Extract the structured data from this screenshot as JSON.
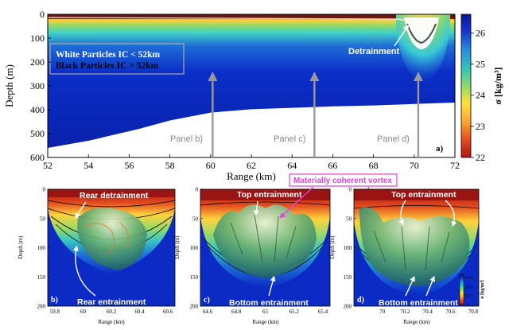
{
  "panel_a": {
    "label": "a)",
    "xlabel": "Range (km)",
    "ylabel": "Depth (m)",
    "legend_white": "White Particles IC < 52km",
    "legend_black": "Black Particles IC > 52km",
    "detrainment": "Detrainment",
    "panel_b_label": "Panel b)",
    "panel_c_label": "Panel c)",
    "panel_d_label": "Panel d)",
    "colorbar_label": "σ [kg/m³]"
  },
  "panel_b": {
    "label": "b)",
    "xlabel": "Range (km)",
    "ylabel": "Depth (m)",
    "top_annotation": "Rear detrainment",
    "bottom_annotation": "Rear entrainment"
  },
  "panel_c": {
    "label": "c)",
    "xlabel": "Range (km)",
    "ylabel": "Depth (m)",
    "top_annotation": "Top entrainment",
    "bottom_annotation": "Bottom entrainment",
    "vortex_annotation": "Materially coherent vortex"
  },
  "panel_d": {
    "label": "d)",
    "xlabel": "Range (km)",
    "ylabel": "Depth (m)",
    "top_annotation": "Top entrainment",
    "bottom_annotation": "Bottom entrainment",
    "colorbar_label": "σ [kg/m³]"
  },
  "chart_data": [
    {
      "id": "a",
      "type": "heatmap",
      "xlim": [
        52,
        72
      ],
      "ylim": [
        600,
        0
      ],
      "x_ticks": [
        52,
        54,
        56,
        58,
        60,
        62,
        64,
        66,
        68,
        70,
        72
      ],
      "y_ticks": [
        0,
        100,
        200,
        300,
        400,
        500,
        600
      ],
      "colorbar_ticks": [
        22,
        23,
        24,
        25,
        26
      ],
      "colorbar_range": [
        22,
        26.6
      ],
      "panel_marker_ranges": [
        60.1,
        65.1,
        70.2
      ],
      "vortex_center_range": 70.2,
      "bottom_profile": [
        [
          52,
          560
        ],
        [
          54,
          530
        ],
        [
          56,
          490
        ],
        [
          56.5,
          480
        ],
        [
          58,
          445
        ],
        [
          60,
          412
        ],
        [
          62,
          398
        ],
        [
          64,
          392
        ],
        [
          66,
          386
        ],
        [
          68,
          382
        ],
        [
          70,
          376
        ],
        [
          72,
          370
        ]
      ]
    },
    {
      "id": "b",
      "type": "heatmap",
      "xlim": [
        59.75,
        60.65
      ],
      "ylim": [
        200,
        0
      ],
      "x_ticks": [
        "59.8",
        "60",
        "60.2",
        "60.4",
        "60.6"
      ],
      "y_ticks": [
        0,
        50,
        100,
        150,
        200
      ]
    },
    {
      "id": "c",
      "type": "heatmap",
      "xlim": [
        64.55,
        65.45
      ],
      "ylim": [
        200,
        0
      ],
      "x_ticks": [
        "64.6",
        "64.8",
        "65",
        "65.2",
        "65.4"
      ],
      "y_ticks": [
        0,
        50,
        100,
        150,
        200
      ]
    },
    {
      "id": "d",
      "type": "heatmap",
      "xlim": [
        69.75,
        70.85
      ],
      "ylim": [
        200,
        0
      ],
      "x_ticks": [
        "70",
        "70.2",
        "70.4",
        "70.6",
        "70.8"
      ],
      "y_ticks": [
        0,
        50,
        100,
        150,
        200
      ],
      "colorbar_ticks": [
        "22",
        "22.2",
        "22.4",
        "22.6"
      ]
    }
  ],
  "colors": {
    "arrow": "#9a9a9a",
    "vortex_annotation": "#e040e0",
    "legend_box_border": "#aaaaaa"
  }
}
